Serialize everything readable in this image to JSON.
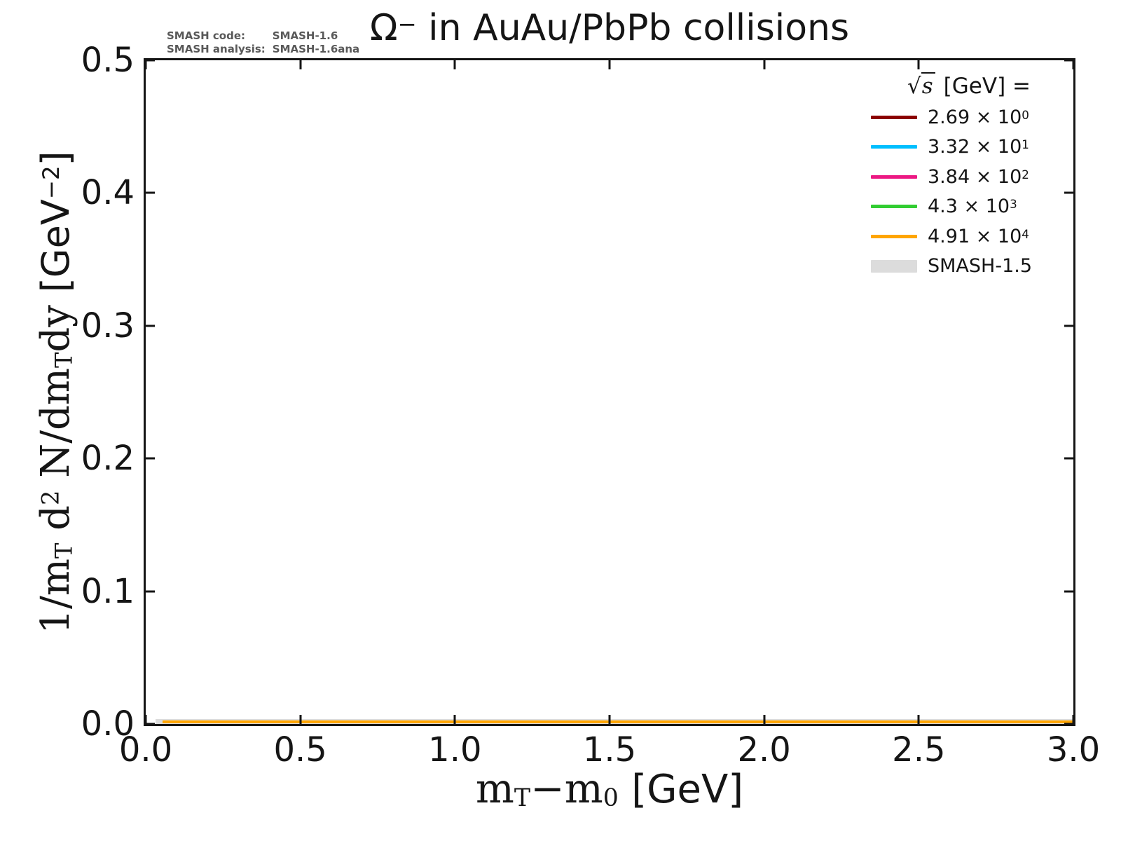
{
  "title": {
    "omega": "Ω",
    "omega_sup": "−",
    "rest": " in AuAu/PbPb collisions"
  },
  "watermark": {
    "line1_label": "SMASH code:",
    "line1_value": "SMASH-1.6",
    "line2_label": "SMASH analysis:",
    "line2_value": "SMASH-1.6ana"
  },
  "axes": {
    "x": {
      "tick_labels": [
        "0.0",
        "0.5",
        "1.0",
        "1.5",
        "2.0",
        "2.5",
        "3.0"
      ],
      "label": {
        "m1": "m",
        "sub1": "T",
        "minus": "−",
        "m2": "m",
        "sub2": "0",
        "unit": "[GeV]"
      }
    },
    "y": {
      "tick_labels": [
        "0.0",
        "0.1",
        "0.2",
        "0.3",
        "0.4",
        "0.5"
      ],
      "label": {
        "p1": "1/m",
        "sub1": "T",
        "p2": " d",
        "sup1": "2",
        "p3": " N/dm",
        "sub2": "T",
        "p4": "dy ",
        "u1": "[GeV",
        "usup": "−2",
        "u2": "]"
      }
    }
  },
  "legend": {
    "title": {
      "sqrt": "√",
      "arg": "s",
      "rest": "[GeV] ="
    },
    "entries": [
      {
        "base": "2.69 × 10",
        "exp": "0",
        "color": "#8B0000"
      },
      {
        "base": "3.32 × 10",
        "exp": "1",
        "color": "#00BFFF"
      },
      {
        "base": "3.84 × 10",
        "exp": "2",
        "color": "#EC1883"
      },
      {
        "base": "4.3 × 10",
        "exp": "3",
        "color": "#32CD32"
      },
      {
        "base": "4.91 × 10",
        "exp": "4",
        "color": "#FFA500"
      },
      {
        "base": "SMASH-1.5",
        "exp": "",
        "color": "#DCDCDC"
      }
    ]
  },
  "colors": {
    "foreground": "#151515",
    "watermark_text": "#595959",
    "smash15_band": "#DCDCDC",
    "top_visible_curve": "#FFA500"
  },
  "chart_data": {
    "type": "line",
    "title": "Ω− in AuAu/PbPb collisions",
    "xlabel": "mT−m0 [GeV]",
    "ylabel": "1/mT d2 N/dmT dy [GeV−2]",
    "xlim": [
      0.0,
      3.0
    ],
    "ylim": [
      0.0,
      0.5
    ],
    "x_ticks": [
      0.0,
      0.5,
      1.0,
      1.5,
      2.0,
      2.5,
      3.0
    ],
    "y_ticks": [
      0.0,
      0.1,
      0.2,
      0.3,
      0.4,
      0.5
    ],
    "grid": false,
    "legend_position": "upper right",
    "legend_title": "√s [GeV] =",
    "series": [
      {
        "name": "2.69 × 10^0",
        "sqrt_s_GeV": 2.69,
        "color": "#8B0000",
        "x": [
          0.05,
          3.0
        ],
        "y": [
          0.0,
          0.0
        ]
      },
      {
        "name": "3.32 × 10^1",
        "sqrt_s_GeV": 33.2,
        "color": "#00BFFF",
        "x": [
          0.05,
          3.0
        ],
        "y": [
          0.0,
          0.0
        ]
      },
      {
        "name": "3.84 × 10^2",
        "sqrt_s_GeV": 384.0,
        "color": "#EC1883",
        "x": [
          0.05,
          3.0
        ],
        "y": [
          0.0,
          0.0
        ]
      },
      {
        "name": "4.3 × 10^3",
        "sqrt_s_GeV": 4300.0,
        "color": "#32CD32",
        "x": [
          0.05,
          3.0
        ],
        "y": [
          0.0,
          0.0
        ]
      },
      {
        "name": "4.91 × 10^4",
        "sqrt_s_GeV": 49100.0,
        "color": "#FFA500",
        "x": [
          0.05,
          3.0
        ],
        "y": [
          0.0,
          0.0
        ]
      },
      {
        "name": "SMASH-1.5",
        "style": "thick gray reference band",
        "color": "#DCDCDC",
        "x": [
          0.05,
          3.0
        ],
        "y": [
          0.0,
          0.0
        ]
      }
    ],
    "note": "All curves lie flat at ≈0 on this linear y scale; visually only the thick gray SMASH-1.5 band with the orange 4.91×10^4 curve on top is distinguishable along y = 0."
  }
}
